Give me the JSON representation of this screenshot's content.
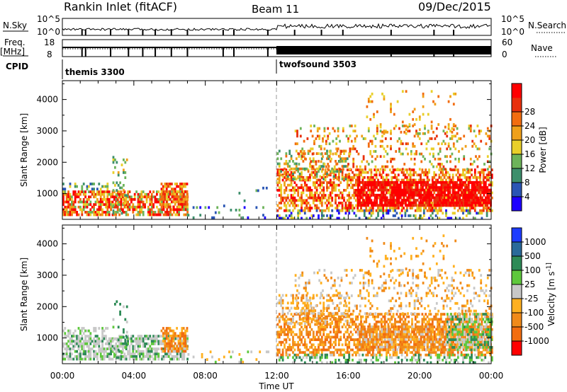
{
  "header": {
    "station": "Rankin Inlet (fitACF)",
    "beam": "Beam 11",
    "date": "09/Dec/2015"
  },
  "summary": {
    "nsky_label": "N.Sky",
    "nsky_ticks": [
      "10^5",
      "10^0"
    ],
    "nsearch_label": "N.Search",
    "nsearch_ticks": [
      "10^5",
      "10^0"
    ],
    "freq_label": "Freq.",
    "freq_unit": "[MHz]",
    "freq_ticks": [
      "18",
      "8"
    ],
    "nave_label": "Nave",
    "nave_ticks": [
      "60",
      "0"
    ],
    "cpid_label": "CPID",
    "cpid_segments": [
      {
        "name": "themis 3300",
        "start_hour": 0
      },
      {
        "name": "twofsound 3503",
        "start_hour": 12
      }
    ]
  },
  "chart_data": [
    {
      "type": "heatmap",
      "name": "power-panel",
      "ylabel": "Slant Range [km]",
      "x_tick_labels": [
        "00:00",
        "04:00",
        "08:00",
        "12:00",
        "16:00",
        "20:00",
        "00:00"
      ],
      "x_hours": [
        0,
        4,
        8,
        12,
        16,
        20,
        24
      ],
      "y_ticks": [
        1000,
        2000,
        3000,
        4000
      ],
      "ylim": [
        180,
        4600
      ],
      "xlim_hours": [
        0,
        24
      ],
      "colorbar": {
        "label": "Power [dB]",
        "tick_labels": [
          "4",
          "8",
          "12",
          "16",
          "20",
          "24",
          "28"
        ],
        "colors": [
          "#1e00ff",
          "#2a55b4",
          "#3d8f6c",
          "#6db35a",
          "#e9cf2a",
          "#f0a01a",
          "#f26d10",
          "#e8300c",
          "#ff0000"
        ]
      },
      "regions": [
        {
          "t0": 0.0,
          "t1": 7.0,
          "r0": 300,
          "r1": 1100,
          "density": 0.7,
          "palette": [
            3,
            4,
            5,
            6,
            7,
            8,
            8
          ]
        },
        {
          "t0": 0.0,
          "t1": 2.5,
          "r0": 1150,
          "r1": 1350,
          "density": 0.35,
          "palette": [
            1,
            2,
            3,
            4
          ]
        },
        {
          "t0": 2.8,
          "t1": 3.6,
          "r0": 400,
          "r1": 2200,
          "density": 0.15,
          "palette": [
            2,
            3,
            4,
            5
          ]
        },
        {
          "t0": 5.5,
          "t1": 7.0,
          "r0": 600,
          "r1": 1350,
          "density": 0.6,
          "palette": [
            4,
            5,
            6,
            7,
            8
          ]
        },
        {
          "t0": 7.0,
          "t1": 11.5,
          "r0": 250,
          "r1": 600,
          "density": 0.12,
          "palette": [
            0,
            1,
            2,
            3
          ]
        },
        {
          "t0": 9.0,
          "t1": 11.5,
          "r0": 600,
          "r1": 1300,
          "density": 0.05,
          "palette": [
            1,
            2,
            3
          ]
        },
        {
          "t0": 12.0,
          "t1": 24.0,
          "r0": 500,
          "r1": 1800,
          "density": 0.55,
          "palette": [
            4,
            5,
            6,
            7,
            8
          ]
        },
        {
          "t0": 16.5,
          "t1": 24.0,
          "r0": 600,
          "r1": 1400,
          "density": 0.8,
          "palette": [
            7,
            8,
            8,
            8
          ]
        },
        {
          "t0": 12.0,
          "t1": 16.0,
          "r0": 1500,
          "r1": 2400,
          "density": 0.3,
          "palette": [
            2,
            3,
            4,
            5,
            6
          ]
        },
        {
          "t0": 13.0,
          "t1": 24.0,
          "r0": 1800,
          "r1": 3200,
          "density": 0.18,
          "palette": [
            3,
            4,
            5,
            6,
            7
          ]
        },
        {
          "t0": 12.0,
          "t1": 24.0,
          "r0": 250,
          "r1": 500,
          "density": 0.3,
          "palette": [
            0,
            1,
            2,
            3,
            4
          ]
        },
        {
          "t0": 17.0,
          "t1": 22.0,
          "r0": 3000,
          "r1": 4300,
          "density": 0.06,
          "palette": [
            4,
            5,
            6
          ]
        }
      ]
    },
    {
      "type": "heatmap",
      "name": "velocity-panel",
      "ylabel": "Slant Range [km]",
      "xlabel": "Time UT",
      "x_tick_labels": [
        "00:00",
        "04:00",
        "08:00",
        "12:00",
        "16:00",
        "20:00",
        "00:00"
      ],
      "x_hours": [
        0,
        4,
        8,
        12,
        16,
        20,
        24
      ],
      "y_ticks": [
        1000,
        2000,
        3000,
        4000
      ],
      "ylim": [
        180,
        4600
      ],
      "xlim_hours": [
        0,
        24
      ],
      "colorbar": {
        "label": "Velocity [m s^-1]",
        "tick_labels": [
          "-1000",
          "-500",
          "-100",
          "-25",
          "25",
          "100",
          "500",
          "1000"
        ],
        "colors": [
          "#ff0000",
          "#f26d10",
          "#f08a1a",
          "#ffb020",
          "#c8c8c8",
          "#5ec83c",
          "#2e8b57",
          "#2a6a9a",
          "#1e3cff"
        ]
      },
      "regions": [
        {
          "t0": 0.0,
          "t1": 7.0,
          "r0": 300,
          "r1": 1100,
          "density": 0.7,
          "palette": [
            4,
            5,
            6,
            4,
            4
          ]
        },
        {
          "t0": 0.0,
          "t1": 2.5,
          "r0": 1150,
          "r1": 1350,
          "density": 0.3,
          "palette": [
            4,
            4,
            5
          ]
        },
        {
          "t0": 2.8,
          "t1": 3.6,
          "r0": 400,
          "r1": 2200,
          "density": 0.15,
          "palette": [
            4,
            5,
            6
          ]
        },
        {
          "t0": 5.5,
          "t1": 7.0,
          "r0": 600,
          "r1": 1350,
          "density": 0.6,
          "palette": [
            1,
            2,
            3
          ]
        },
        {
          "t0": 7.0,
          "t1": 11.5,
          "r0": 250,
          "r1": 600,
          "density": 0.12,
          "palette": [
            3,
            4,
            5
          ]
        },
        {
          "t0": 12.0,
          "t1": 24.0,
          "r0": 500,
          "r1": 1800,
          "density": 0.55,
          "palette": [
            1,
            2,
            3,
            2
          ]
        },
        {
          "t0": 16.5,
          "t1": 24.0,
          "r0": 600,
          "r1": 1400,
          "density": 0.7,
          "palette": [
            1,
            2,
            2,
            3,
            4
          ]
        },
        {
          "t0": 21.5,
          "t1": 24.0,
          "r0": 600,
          "r1": 1800,
          "density": 0.5,
          "palette": [
            5,
            6,
            4
          ]
        },
        {
          "t0": 12.0,
          "t1": 16.0,
          "r0": 1500,
          "r1": 2400,
          "density": 0.3,
          "palette": [
            2,
            3,
            4
          ]
        },
        {
          "t0": 13.0,
          "t1": 24.0,
          "r0": 1800,
          "r1": 3200,
          "density": 0.18,
          "palette": [
            2,
            3,
            4
          ]
        },
        {
          "t0": 12.0,
          "t1": 24.0,
          "r0": 250,
          "r1": 500,
          "density": 0.3,
          "palette": [
            4,
            5,
            6
          ]
        },
        {
          "t0": 17.0,
          "t1": 22.0,
          "r0": 3000,
          "r1": 4300,
          "density": 0.06,
          "palette": [
            2,
            3
          ]
        }
      ]
    }
  ]
}
